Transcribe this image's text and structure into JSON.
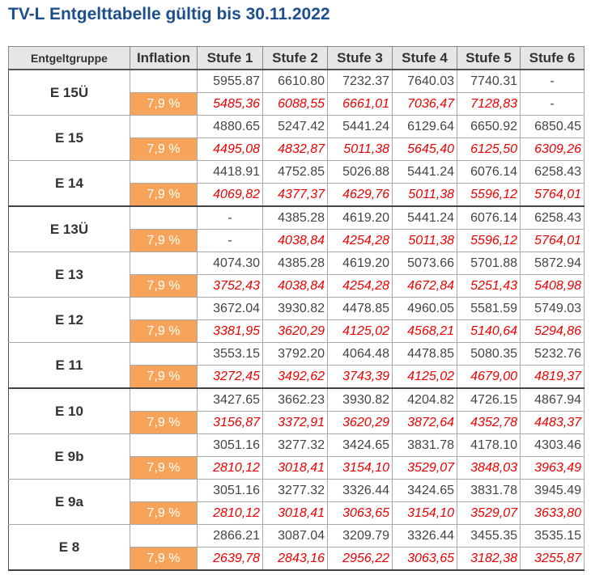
{
  "title": "TV-L Entgelttabelle gültig bis 30.11.2022",
  "header": [
    "Entgeltgruppe",
    "Inflation",
    "Stufe 1",
    "Stufe 2",
    "Stufe 3",
    "Stufe 4",
    "Stufe 5",
    "Stufe 6"
  ],
  "groups": [
    {
      "name": "E 15Ü",
      "inflation": "7,9 %",
      "base": [
        "5955.87",
        "6610.80",
        "7232.37",
        "7640.03",
        "7740.31",
        "-"
      ],
      "adjusted": [
        "5485,36",
        "6088,55",
        "6661,01",
        "7036,47",
        "7128,83",
        "-"
      ]
    },
    {
      "name": "E 15",
      "inflation": "7,9 %",
      "base": [
        "4880.65",
        "5247.42",
        "5441.24",
        "6129.64",
        "6650.92",
        "6850.45"
      ],
      "adjusted": [
        "4495,08",
        "4832,87",
        "5011,38",
        "5645,40",
        "6125,50",
        "6309,26"
      ]
    },
    {
      "name": "E 14",
      "inflation": "7,9 %",
      "base": [
        "4418.91",
        "4752.85",
        "5026.88",
        "5441.24",
        "6076.14",
        "6258.43"
      ],
      "adjusted": [
        "4069,82",
        "4377,37",
        "4629,76",
        "5011,38",
        "5596,12",
        "5764,01"
      ]
    },
    {
      "name": "E 13Ü",
      "inflation": "7,9 %",
      "base": [
        "-",
        "4385.28",
        "4619.20",
        "5441.24",
        "6076.14",
        "6258.43"
      ],
      "adjusted": [
        "-",
        "4038,84",
        "4254,28",
        "5011,38",
        "5596,12",
        "5764,01"
      ]
    },
    {
      "name": "E 13",
      "inflation": "7,9 %",
      "base": [
        "4074.30",
        "4385.28",
        "4619.20",
        "5073.66",
        "5701.88",
        "5872.94"
      ],
      "adjusted": [
        "3752,43",
        "4038,84",
        "4254,28",
        "4672,84",
        "5251,43",
        "5408,98"
      ]
    },
    {
      "name": "E 12",
      "inflation": "7,9 %",
      "base": [
        "3672.04",
        "3930.82",
        "4478.85",
        "4960.05",
        "5581.59",
        "5749.03"
      ],
      "adjusted": [
        "3381,95",
        "3620,29",
        "4125,02",
        "4568,21",
        "5140,64",
        "5294,86"
      ]
    },
    {
      "name": "E 11",
      "inflation": "7,9 %",
      "base": [
        "3553.15",
        "3792.20",
        "4064.48",
        "4478.85",
        "5080.35",
        "5232.76"
      ],
      "adjusted": [
        "3272,45",
        "3492,62",
        "3743,39",
        "4125,02",
        "4679,00",
        "4819,37"
      ]
    },
    {
      "name": "E 10",
      "inflation": "7,9 %",
      "base": [
        "3427.65",
        "3662.23",
        "3930.82",
        "4204.82",
        "4726.15",
        "4867.94"
      ],
      "adjusted": [
        "3156,87",
        "3372,91",
        "3620,29",
        "3872,64",
        "4352,78",
        "4483,37"
      ]
    },
    {
      "name": "E 9b",
      "inflation": "7,9 %",
      "base": [
        "3051.16",
        "3277.32",
        "3424.65",
        "3831.78",
        "4178.10",
        "4303.46"
      ],
      "adjusted": [
        "2810,12",
        "3018,41",
        "3154,10",
        "3529,07",
        "3848,03",
        "3963,49"
      ]
    },
    {
      "name": "E 9a",
      "inflation": "7,9 %",
      "base": [
        "3051.16",
        "3277.32",
        "3326.44",
        "3424.65",
        "3831.78",
        "3945.49"
      ],
      "adjusted": [
        "2810,12",
        "3018,41",
        "3063,65",
        "3154,10",
        "3529,07",
        "3633,80"
      ]
    },
    {
      "name": "E 8",
      "inflation": "7,9 %",
      "base": [
        "2866.21",
        "3087.04",
        "3209.79",
        "3326.44",
        "3455.35",
        "3535.15"
      ],
      "adjusted": [
        "2639,78",
        "2843,16",
        "2956,22",
        "3063,65",
        "3182,38",
        "3255,87"
      ]
    }
  ]
}
